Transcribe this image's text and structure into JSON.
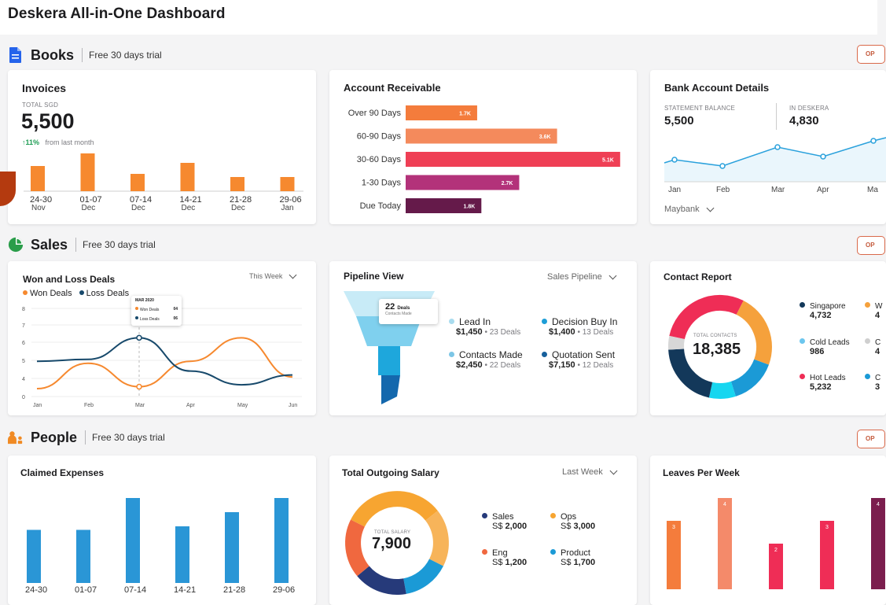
{
  "app": {
    "title": "Deskera All-in-One Dashboard"
  },
  "sections": {
    "books": {
      "title": "Books",
      "trial": "Free 30 days trial",
      "open": "OP"
    },
    "sales": {
      "title": "Sales",
      "trial": "Free 30 days trial",
      "open": "OP"
    },
    "people": {
      "title": "People",
      "trial": "Free 30 days trial",
      "open": "OP"
    }
  },
  "invoices": {
    "title": "Invoices",
    "caption": "TOTAL SGD",
    "total": "5,500",
    "change": "↑11%",
    "change_note": "from last month",
    "bars": [
      {
        "top": "24-30",
        "bottom": "Nov",
        "value": 1.6
      },
      {
        "top": "01-07",
        "bottom": "Dec",
        "value": 2.4
      },
      {
        "top": "07-14",
        "bottom": "Dec",
        "value": 1.1
      },
      {
        "top": "14-21",
        "bottom": "Dec",
        "value": 1.8
      },
      {
        "top": "21-28",
        "bottom": "Dec",
        "value": 0.9
      },
      {
        "top": "29-06",
        "bottom": "Jan",
        "value": 0.9
      }
    ]
  },
  "receivable": {
    "title": "Account Receivable",
    "rows": [
      {
        "label": "Over 90 Days",
        "value_label": "1.7K",
        "value": 1.7,
        "color": "#f47c3c"
      },
      {
        "label": "60-90 Days",
        "value_label": "3.6K",
        "value": 3.6,
        "color": "#f48a5c"
      },
      {
        "label": "30-60 Days",
        "value_label": "5.1K",
        "value": 5.1,
        "color": "#ef3f55"
      },
      {
        "label": "1-30 Days",
        "value_label": "2.7K",
        "value": 2.7,
        "color": "#b3327a"
      },
      {
        "label": "Due Today",
        "value_label": "1.8K",
        "value": 1.8,
        "color": "#651a4a"
      }
    ]
  },
  "bank": {
    "title": "Bank Account Details",
    "statement_caption": "STATEMENT BALANCE",
    "statement_value": "5,500",
    "deskera_caption": "IN DESKERA",
    "deskera_value": "4,830",
    "months": [
      "Jan",
      "Feb",
      "Mar",
      "Apr",
      "Ma"
    ],
    "points": [
      3,
      2,
      5,
      3.5,
      6
    ],
    "account": "Maybank"
  },
  "won_loss": {
    "title": "Won and Loss Deals",
    "period": "This Week",
    "legend_won": "Won Deals",
    "legend_loss": "Loss Deals",
    "tooltip_title": "MAR 2020",
    "tooltip_won_label": "Won Deals",
    "tooltip_won_value": "04",
    "tooltip_loss_label": "Loss Deals",
    "tooltip_loss_value": "06"
  },
  "chart_data": {
    "type": "line",
    "title": "Won and Loss Deals",
    "x": [
      "Jan",
      "Feb",
      "Mar",
      "Apr",
      "May",
      "Jun"
    ],
    "y_ticks": [
      "0",
      "4",
      "5",
      "6",
      "7",
      "8"
    ],
    "series": [
      {
        "name": "Won Deals",
        "color": "#f6892f",
        "values": [
          3.9,
          5.2,
          4.0,
          5.3,
          6.5,
          4.5
        ]
      },
      {
        "name": "Loss Deals",
        "color": "#17496b",
        "values": [
          5.3,
          5.4,
          6.5,
          4.8,
          4.1,
          4.6
        ]
      }
    ]
  },
  "pipeline": {
    "title": "Pipeline View",
    "select": "Sales Pipeline",
    "badge_value": "22",
    "badge_unit": "Deals",
    "badge_sub": "Contacts Made",
    "items": [
      {
        "name": "Lead In",
        "amount": "$1,450",
        "deals": "23 Deals",
        "color": "#a9dcef"
      },
      {
        "name": "Decision Buy In",
        "amount": "$1,400",
        "deals": "13 Deals",
        "color": "#1e9ed7"
      },
      {
        "name": "Contacts Made",
        "amount": "$2,450",
        "deals": "22 Deals",
        "color": "#7cc6e6"
      },
      {
        "name": "Quotation Sent",
        "amount": "$7,150",
        "deals": "12 Deals",
        "color": "#17609c"
      }
    ]
  },
  "contact": {
    "title": "Contact Report",
    "center_caption": "TOTAL CONTACTS",
    "center_value": "18,385",
    "legend": [
      {
        "name": "Singapore",
        "value": "4,732",
        "color": "#13385a"
      },
      {
        "name": "W",
        "value": "4",
        "color": "#f5a13c"
      },
      {
        "name": "Cold Leads",
        "value": "986",
        "color": "#6cc6ee"
      },
      {
        "name": "C",
        "value": "4",
        "color": "#cfcfcf"
      },
      {
        "name": "Hot Leads",
        "value": "5,232",
        "color": "#ef2d56"
      },
      {
        "name": "C",
        "value": "3",
        "color": "#1b9ad6"
      }
    ]
  },
  "expenses": {
    "title": "Claimed Expenses",
    "bars": [
      {
        "label": "24-30",
        "value": 3.0
      },
      {
        "label": "01-07",
        "value": 3.0
      },
      {
        "label": "07-14",
        "value": 4.8
      },
      {
        "label": "14-21",
        "value": 3.2
      },
      {
        "label": "21-28",
        "value": 4.0
      },
      {
        "label": "29-06",
        "value": 4.8
      }
    ]
  },
  "salary": {
    "title": "Total Outgoing Salary",
    "period": "Last Week",
    "center_caption": "TOTAL SALARY",
    "center_value": "7,900",
    "legend": [
      {
        "name": "Sales",
        "value_prefix": "S$",
        "value": "2,000",
        "color": "#263a7a"
      },
      {
        "name": "Ops",
        "value_prefix": "S$",
        "value": "3,000",
        "color": "#f7a531"
      },
      {
        "name": "Eng",
        "value_prefix": "S$",
        "value": "1,200",
        "color": "#f0683f"
      },
      {
        "name": "Product",
        "value_prefix": "S$",
        "value": "1,700",
        "color": "#1b9ad6"
      }
    ]
  },
  "leaves": {
    "title": "Leaves Per Week",
    "bars": [
      {
        "label": "3",
        "value": 3,
        "color": "#f47c3c"
      },
      {
        "label": "4",
        "value": 4,
        "color": "#f48a6a"
      },
      {
        "label": "2",
        "value": 2,
        "color": "#ef2d56"
      },
      {
        "label": "3",
        "value": 3,
        "color": "#ef2d56"
      },
      {
        "label": "4",
        "value": 4,
        "color": "#7b1e4e"
      }
    ]
  }
}
